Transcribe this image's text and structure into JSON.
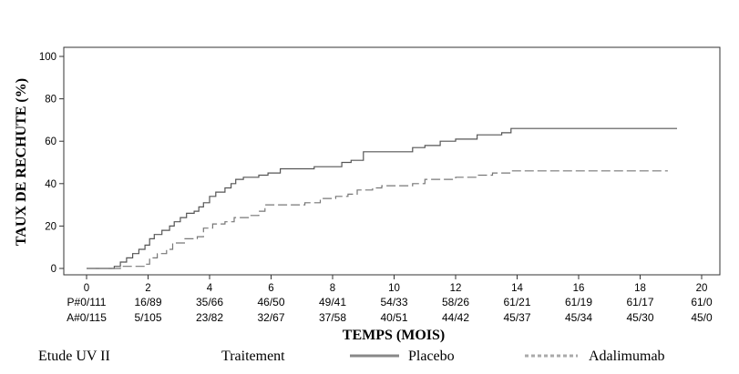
{
  "chart_data": {
    "type": "line",
    "title": "",
    "xlabel": "TEMPS (MOIS)",
    "ylabel": "TAUX DE RECHUTE (%)",
    "xlim": [
      0,
      20
    ],
    "ylim": [
      0,
      100
    ],
    "x_ticks": [
      0,
      2,
      4,
      6,
      8,
      10,
      12,
      14,
      16,
      18,
      20
    ],
    "y_ticks": [
      0,
      20,
      40,
      60,
      80,
      100
    ],
    "series": [
      {
        "name": "Placebo",
        "color": "#555555",
        "style": "solid",
        "step_points": [
          [
            0,
            0
          ],
          [
            0.9,
            1
          ],
          [
            1.1,
            3
          ],
          [
            1.3,
            5
          ],
          [
            1.5,
            7
          ],
          [
            1.7,
            9
          ],
          [
            1.9,
            11
          ],
          [
            2.05,
            14
          ],
          [
            2.2,
            16
          ],
          [
            2.45,
            18
          ],
          [
            2.7,
            20
          ],
          [
            2.85,
            22
          ],
          [
            3.05,
            24
          ],
          [
            3.25,
            26
          ],
          [
            3.5,
            27
          ],
          [
            3.65,
            29
          ],
          [
            3.8,
            31
          ],
          [
            4.0,
            34
          ],
          [
            4.2,
            36
          ],
          [
            4.5,
            38
          ],
          [
            4.7,
            40
          ],
          [
            4.85,
            42
          ],
          [
            5.1,
            43
          ],
          [
            5.6,
            44
          ],
          [
            5.9,
            45
          ],
          [
            6.3,
            47
          ],
          [
            7.4,
            48
          ],
          [
            8.3,
            50
          ],
          [
            8.6,
            51
          ],
          [
            9.0,
            55
          ],
          [
            10.6,
            57
          ],
          [
            11.0,
            58
          ],
          [
            11.5,
            60
          ],
          [
            12.0,
            61
          ],
          [
            12.7,
            63
          ],
          [
            13.5,
            64
          ],
          [
            13.8,
            66
          ],
          [
            19.2,
            66
          ]
        ]
      },
      {
        "name": "Adalimumab",
        "color": "#777777",
        "style": "dashed",
        "step_points": [
          [
            0,
            0
          ],
          [
            1.1,
            1
          ],
          [
            1.9,
            2
          ],
          [
            2.05,
            5
          ],
          [
            2.3,
            7
          ],
          [
            2.6,
            9
          ],
          [
            2.8,
            12
          ],
          [
            3.2,
            14
          ],
          [
            3.6,
            15
          ],
          [
            3.8,
            19
          ],
          [
            4.1,
            21
          ],
          [
            4.5,
            22
          ],
          [
            4.8,
            24
          ],
          [
            5.3,
            25
          ],
          [
            5.6,
            27
          ],
          [
            5.8,
            30
          ],
          [
            7.1,
            31
          ],
          [
            7.6,
            33
          ],
          [
            8.1,
            34
          ],
          [
            8.5,
            35
          ],
          [
            8.8,
            37
          ],
          [
            9.3,
            38
          ],
          [
            9.6,
            39
          ],
          [
            10.6,
            40
          ],
          [
            11.0,
            42
          ],
          [
            12.0,
            43
          ],
          [
            12.7,
            44
          ],
          [
            13.2,
            45
          ],
          [
            13.8,
            46
          ],
          [
            18.9,
            46
          ]
        ]
      }
    ],
    "risk_table": {
      "x": [
        0,
        2,
        4,
        6,
        8,
        10,
        12,
        14,
        16,
        18,
        20
      ],
      "rows": [
        {
          "label": "P#",
          "values": [
            "0/111",
            "16/89",
            "35/66",
            "46/50",
            "49/41",
            "54/33",
            "58/26",
            "61/21",
            "61/19",
            "61/17",
            "61/0"
          ]
        },
        {
          "label": "A#",
          "values": [
            "0/115",
            "5/105",
            "23/82",
            "32/67",
            "37/58",
            "40/51",
            "44/42",
            "45/37",
            "45/34",
            "45/30",
            "45/0"
          ]
        }
      ]
    },
    "legend": {
      "study": "Etude UV II",
      "heading": "Traitement",
      "items": [
        "Placebo",
        "Adalimumab"
      ]
    },
    "grid": false
  }
}
